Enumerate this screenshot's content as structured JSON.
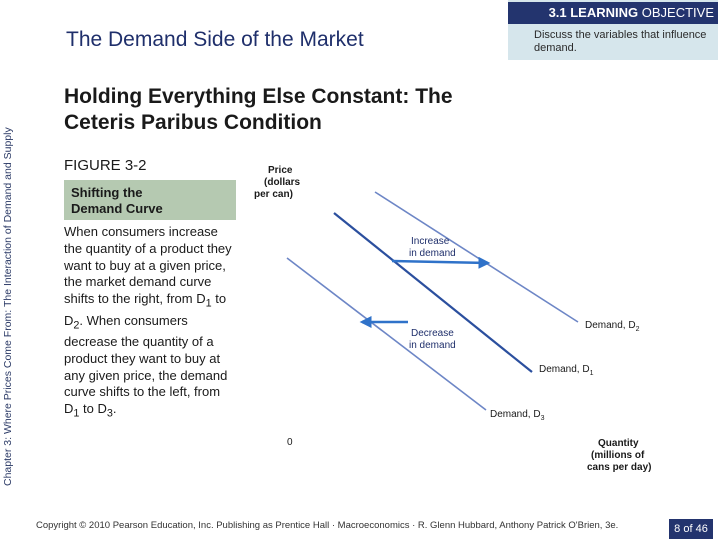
{
  "sidebar": {
    "chapter_text": "Chapter 3: Where Prices Come From: The Interaction of Demand and Supply"
  },
  "header": {
    "section_title": "The Demand Side of the Market",
    "objective_strong": "3.1 LEARNING",
    "objective_rest": " OBJECTIVE",
    "objective_text": "Discuss the variables that influence demand."
  },
  "slide": {
    "title": "Holding Everything Else Constant: The Ceteris Paribus Condition"
  },
  "figure": {
    "label": "FIGURE 3-2",
    "name_line1": "Shifting the",
    "name_line2": "Demand Curve",
    "caption": {
      "p1": "When consumers increase the quantity of a product they want to buy at a given price, the market demand curve shifts to the right, from D",
      "sub1": "1",
      "p2": " to D",
      "sub2": "2",
      "p3": ". When consumers decrease the quantity of a product they want to buy at any given price, the demand curve shifts to the left, from D",
      "sub3": "1",
      "p4": " to D",
      "sub4": "3",
      "p5": "."
    }
  },
  "chart": {
    "y_label_line1": "Price",
    "y_label_line2": "(dollars",
    "y_label_line3": "per can)",
    "origin": "0",
    "x_label_line1": "Quantity",
    "x_label_line2": "(millions of",
    "x_label_line3": "cans per day)",
    "increase_line1": "Increase",
    "increase_line2": "in demand",
    "decrease_line1": "Decrease",
    "decrease_line2": "in demand",
    "d2_label": "Demand, D",
    "d2_sub": "2",
    "d1_label": "Demand, D",
    "d1_sub": "1",
    "d3_label": "Demand, D",
    "d3_sub": "3",
    "colors": {
      "d1": "#2b4f9e",
      "d2": "#6d86c6",
      "d3": "#6d86c6",
      "increase_arrow": "#2f72c9",
      "decrease_arrow": "#2f72c9"
    }
  },
  "footer": {
    "copyright": "Copyright © 2010 Pearson Education, Inc. Publishing as Prentice Hall · Macroeconomics · R. Glenn Hubbard, Anthony Patrick O'Brien, 3e.",
    "page": "8 of 46"
  }
}
